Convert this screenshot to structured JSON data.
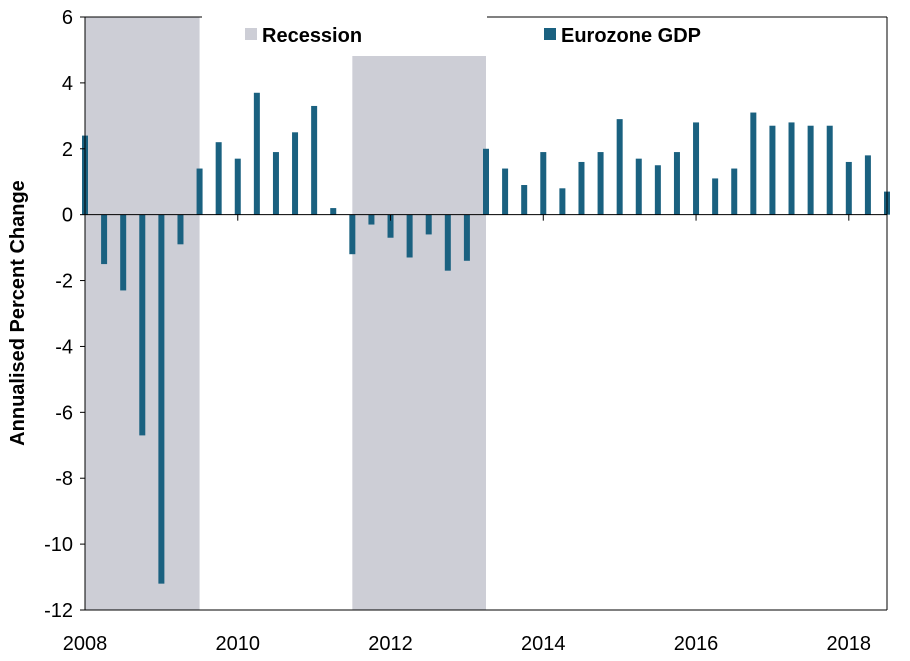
{
  "chart_data": {
    "type": "bar",
    "ylabel": "Annualised Percent Change",
    "ylim": [
      -12,
      6
    ],
    "yticks": [
      6,
      4,
      2,
      0,
      -2,
      -4,
      -6,
      -8,
      -10,
      -12
    ],
    "xlim": [
      2008.0,
      2018.5
    ],
    "xticks": [
      "2008",
      "2010",
      "2012",
      "2014",
      "2016",
      "2018"
    ],
    "legend": {
      "placement": "top",
      "entries": [
        {
          "name": "Recession",
          "color": "#cdced6"
        },
        {
          "name": "Eurozone GDP",
          "color": "#1a6180"
        }
      ]
    },
    "recessions": [
      {
        "start": "2008Q1",
        "end": "2009Q2"
      },
      {
        "start": "2011Q3",
        "end": "2013Q1"
      }
    ],
    "series": [
      {
        "name": "Eurozone GDP",
        "color": "#1a6180",
        "x": [
          "2008Q1",
          "2008Q2",
          "2008Q3",
          "2008Q4",
          "2009Q1",
          "2009Q2",
          "2009Q3",
          "2009Q4",
          "2010Q1",
          "2010Q2",
          "2010Q3",
          "2010Q4",
          "2011Q1",
          "2011Q2",
          "2011Q3",
          "2011Q4",
          "2012Q1",
          "2012Q2",
          "2012Q3",
          "2012Q4",
          "2013Q1",
          "2013Q2",
          "2013Q3",
          "2013Q4",
          "2014Q1",
          "2014Q2",
          "2014Q3",
          "2014Q4",
          "2015Q1",
          "2015Q2",
          "2015Q3",
          "2015Q4",
          "2016Q1",
          "2016Q2",
          "2016Q3",
          "2016Q4",
          "2017Q1",
          "2017Q2",
          "2017Q3",
          "2017Q4",
          "2018Q1",
          "2018Q2",
          "2018Q3"
        ],
        "values": [
          2.4,
          -1.5,
          -2.3,
          -6.7,
          -11.2,
          -0.9,
          1.4,
          2.2,
          1.7,
          3.7,
          1.9,
          2.5,
          3.3,
          0.2,
          -1.2,
          -0.3,
          -0.7,
          -1.3,
          -0.6,
          -1.7,
          -1.4,
          2.0,
          1.4,
          0.9,
          1.9,
          0.8,
          1.6,
          1.9,
          2.9,
          1.7,
          1.5,
          1.9,
          2.8,
          1.1,
          1.4,
          3.1,
          2.7,
          2.8,
          2.7,
          2.7,
          1.6,
          1.8,
          0.7
        ]
      }
    ]
  }
}
